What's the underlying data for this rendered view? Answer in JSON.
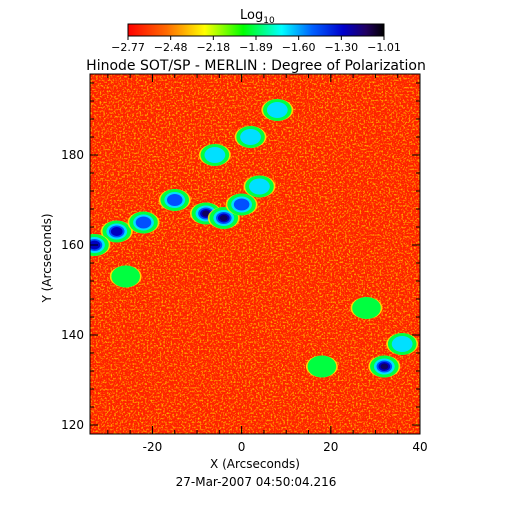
{
  "chart_data": {
    "type": "heatmap",
    "title": "Hinode SOT/SP - MERLIN : Degree of Polarization",
    "colorbar": {
      "label_base": "Log",
      "label_sub": "10",
      "ticks": [
        "−2.77",
        "−2.48",
        "−2.18",
        "−1.89",
        "−1.60",
        "−1.30",
        "−1.01"
      ],
      "range": [
        -2.77,
        -1.01
      ],
      "colors": [
        "#ff0000",
        "#ff8000",
        "#ffff00",
        "#00ff00",
        "#00ffff",
        "#0080ff",
        "#0000ff",
        "#000060",
        "#000000"
      ]
    },
    "xlabel": "X (Arcseconds)",
    "ylabel": "Y (Arcseconds)",
    "xlim": [
      -34,
      40
    ],
    "ylim": [
      118,
      198
    ],
    "xticks": [
      -20,
      0,
      20,
      40
    ],
    "yticks": [
      120,
      140,
      160,
      180
    ],
    "timestamp": "27-Mar-2007 04:50:04.216",
    "grid": false,
    "colormap_note": "red background with yellow/green/cyan/blue enhanced polarization patches; dark blue cores",
    "features": [
      {
        "x": -28,
        "y": 163,
        "v": -1.2
      },
      {
        "x": -22,
        "y": 165,
        "v": -1.5
      },
      {
        "x": -15,
        "y": 170,
        "v": -1.4
      },
      {
        "x": -8,
        "y": 167,
        "v": -1.1
      },
      {
        "x": -4,
        "y": 166,
        "v": -1.05
      },
      {
        "x": 0,
        "y": 169,
        "v": -1.3
      },
      {
        "x": 4,
        "y": 173,
        "v": -1.6
      },
      {
        "x": -6,
        "y": 180,
        "v": -1.6
      },
      {
        "x": 2,
        "y": 184,
        "v": -1.7
      },
      {
        "x": 8,
        "y": 190,
        "v": -1.8
      },
      {
        "x": -33,
        "y": 160,
        "v": -1.2
      },
      {
        "x": -26,
        "y": 153,
        "v": -1.9
      },
      {
        "x": 32,
        "y": 133,
        "v": -1.1
      },
      {
        "x": 36,
        "y": 138,
        "v": -1.8
      },
      {
        "x": 28,
        "y": 146,
        "v": -2.0
      },
      {
        "x": 18,
        "y": 133,
        "v": -2.0
      }
    ]
  }
}
